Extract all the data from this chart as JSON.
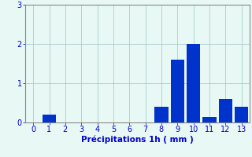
{
  "categories": [
    0,
    1,
    2,
    3,
    4,
    5,
    6,
    7,
    8,
    9,
    10,
    11,
    12,
    13
  ],
  "values": [
    0,
    0.2,
    0,
    0,
    0,
    0,
    0,
    0,
    0.4,
    1.6,
    2.0,
    0.15,
    0.6,
    0.4
  ],
  "bar_color": "#0033cc",
  "background_color": "#e8f8f5",
  "grid_color": "#aacccc",
  "xlabel": "Précipitations 1h ( mm )",
  "xlabel_color": "#0000cc",
  "tick_color": "#0000cc",
  "ylim": [
    0,
    3
  ],
  "yticks": [
    0,
    1,
    2,
    3
  ],
  "xlim": [
    -0.5,
    13.5
  ],
  "bar_width": 0.85,
  "xlabel_fontsize": 7.5,
  "tick_fontsize": 7.0
}
